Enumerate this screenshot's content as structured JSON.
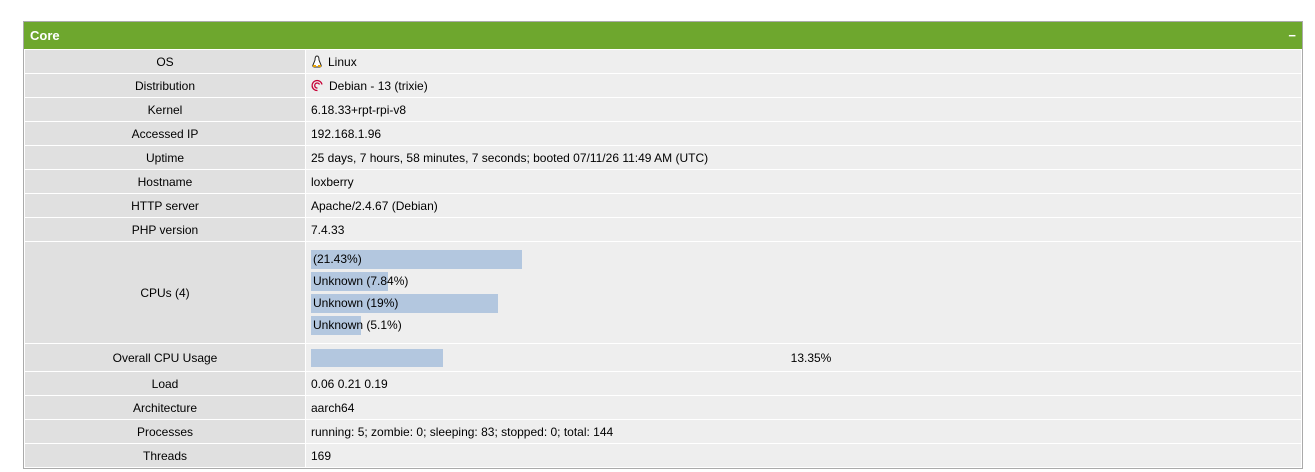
{
  "header": {
    "title": "Core",
    "toggle": "−"
  },
  "rows": [
    {
      "label": "OS",
      "value": "Linux"
    },
    {
      "label": "Distribution",
      "value": "Debian - 13 (trixie)"
    },
    {
      "label": "Kernel",
      "value": "6.18.33+rpt-rpi-v8"
    },
    {
      "label": "Accessed IP",
      "value": "192.168.1.96"
    },
    {
      "label": "Uptime",
      "value": "25 days, 7 hours, 58 minutes, 7 seconds; booted 07/11/26 11:49 AM (UTC)"
    },
    {
      "label": "Hostname",
      "value": "loxberry"
    },
    {
      "label": "HTTP server",
      "value": "Apache/2.4.67 (Debian)"
    },
    {
      "label": "PHP version",
      "value": "7.4.33"
    }
  ],
  "cpus": {
    "label": "CPUs (4)",
    "items": [
      {
        "value": 21.43,
        "label": "(21.43%)"
      },
      {
        "value": 7.84,
        "label": "Unknown (7.84%)"
      },
      {
        "value": 19,
        "label": "Unknown (19%)"
      },
      {
        "value": 5.1,
        "label": "Unknown (5.1%)"
      }
    ]
  },
  "cpu_usage": {
    "label": "Overall CPU Usage",
    "value": 13.35,
    "value_label": "13.35%"
  },
  "rows2": [
    {
      "label": "Load",
      "value": "0.06 0.21 0.19"
    },
    {
      "label": "Architecture",
      "value": "aarch64"
    },
    {
      "label": "Processes",
      "value": "running: 5; zombie: 0; sleeping: 83; stopped: 0; total: 144"
    },
    {
      "label": "Threads",
      "value": "169"
    }
  ]
}
